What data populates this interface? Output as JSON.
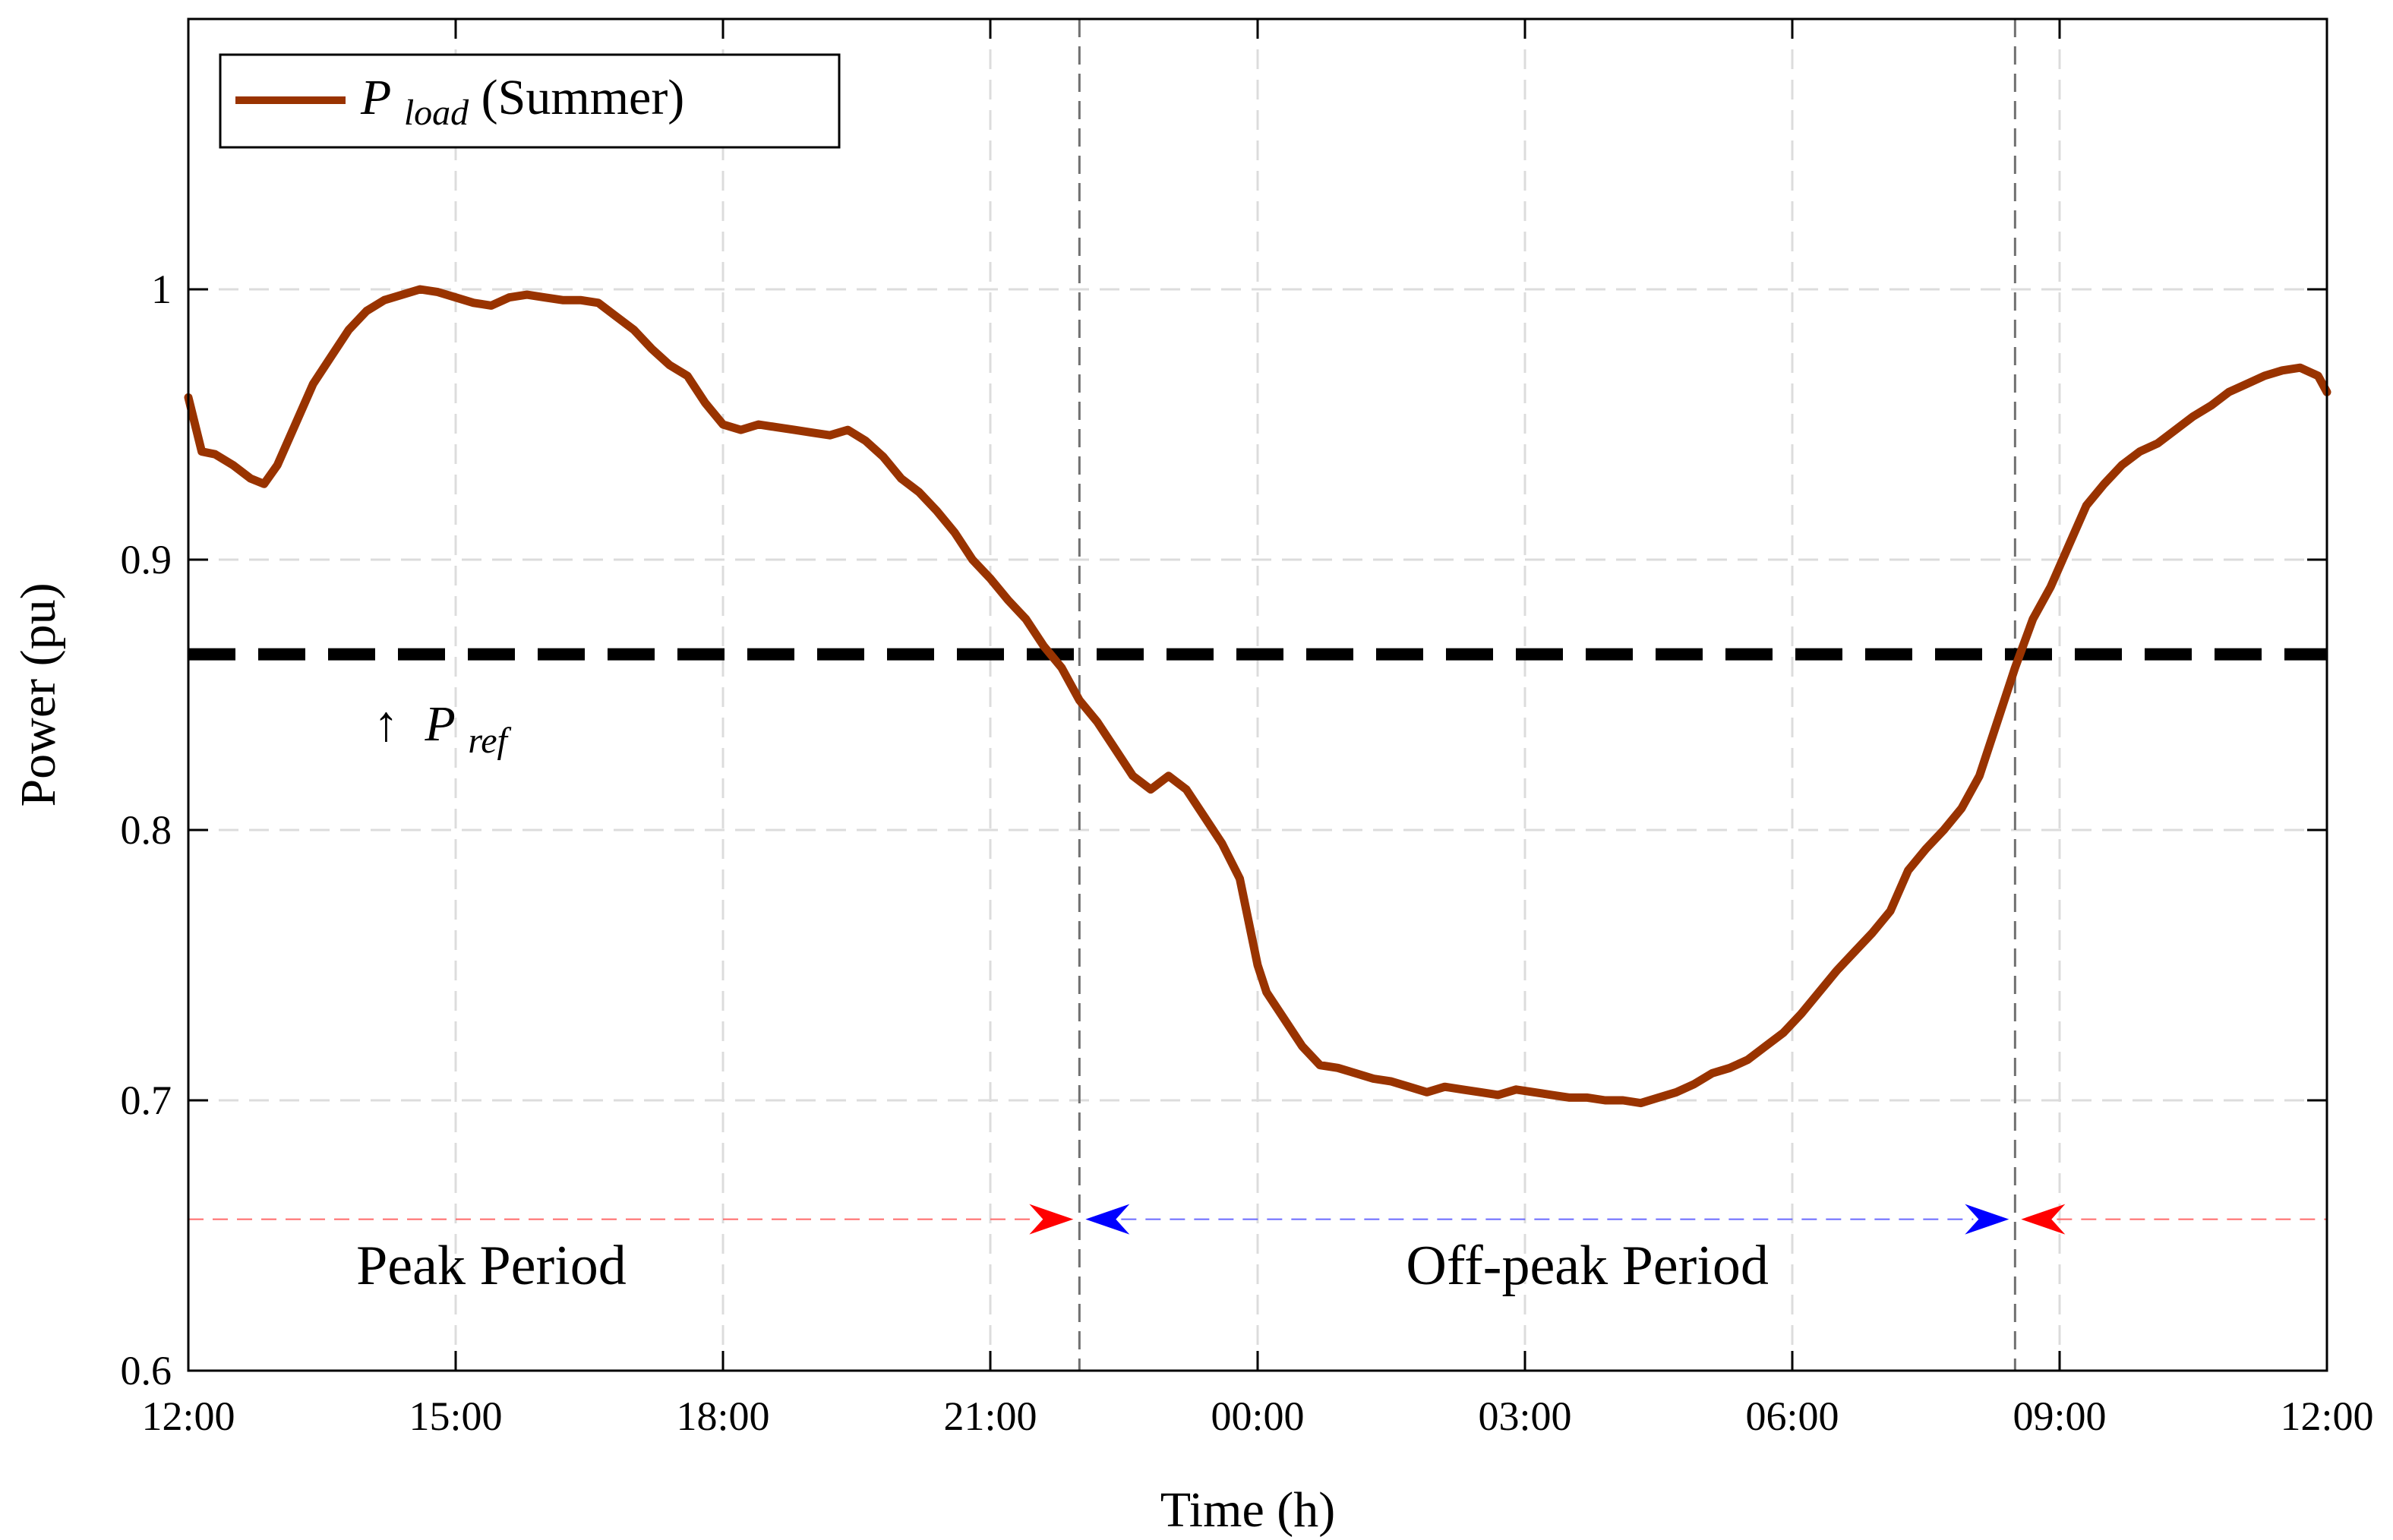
{
  "chart_data": {
    "type": "line",
    "title": "",
    "xlabel": "Time (h)",
    "ylabel": "Power (pu)",
    "x_unit": "hours since 12:00",
    "xlim": [
      0,
      24
    ],
    "ylim": [
      0.6,
      1.1
    ],
    "grid": true,
    "legend_placement": "top-left",
    "x_ticks": [
      {
        "value": 0,
        "label": "12:00"
      },
      {
        "value": 3,
        "label": "15:00"
      },
      {
        "value": 6,
        "label": "18:00"
      },
      {
        "value": 9,
        "label": "21:00"
      },
      {
        "value": 12,
        "label": "00:00"
      },
      {
        "value": 15,
        "label": "03:00"
      },
      {
        "value": 18,
        "label": "06:00"
      },
      {
        "value": 21,
        "label": "09:00"
      },
      {
        "value": 24,
        "label": "12:00"
      }
    ],
    "y_ticks": [
      {
        "value": 0.6,
        "label": "0.6"
      },
      {
        "value": 0.7,
        "label": "0.7"
      },
      {
        "value": 0.8,
        "label": "0.8"
      },
      {
        "value": 0.9,
        "label": "0.9"
      },
      {
        "value": 1.0,
        "label": "1"
      }
    ],
    "series": [
      {
        "name": "P_load (Summer)",
        "legend_main": "P",
        "legend_sub": "load",
        "legend_suffix": " (Summer)",
        "color": "#993300",
        "x": [
          0,
          0.15,
          0.3,
          0.5,
          0.7,
          0.85,
          1.0,
          1.2,
          1.4,
          1.6,
          1.8,
          2.0,
          2.2,
          2.4,
          2.6,
          2.8,
          3.0,
          3.2,
          3.4,
          3.6,
          3.8,
          4.0,
          4.2,
          4.4,
          4.6,
          4.8,
          5.0,
          5.2,
          5.4,
          5.6,
          5.8,
          6.0,
          6.2,
          6.4,
          6.6,
          6.8,
          7.0,
          7.2,
          7.4,
          7.6,
          7.8,
          8.0,
          8.2,
          8.4,
          8.6,
          8.8,
          9.0,
          9.2,
          9.4,
          9.6,
          9.8,
          10.0,
          10.2,
          10.4,
          10.6,
          10.8,
          11.0,
          11.2,
          11.4,
          11.6,
          11.8,
          12.0,
          12.1,
          12.3,
          12.5,
          12.7,
          12.9,
          13.1,
          13.3,
          13.5,
          13.7,
          13.9,
          14.1,
          14.3,
          14.5,
          14.7,
          14.9,
          15.1,
          15.3,
          15.5,
          15.7,
          15.9,
          16.1,
          16.3,
          16.5,
          16.7,
          16.9,
          17.1,
          17.3,
          17.5,
          17.7,
          17.9,
          18.1,
          18.3,
          18.5,
          18.7,
          18.9,
          19.1,
          19.3,
          19.5,
          19.7,
          19.9,
          20.1,
          20.3,
          20.5,
          20.7,
          20.9,
          21.1,
          21.3,
          21.5,
          21.7,
          21.9,
          22.1,
          22.3,
          22.5,
          22.7,
          22.9,
          23.1,
          23.3,
          23.5,
          23.7,
          23.9,
          24.0
        ],
        "y": [
          0.96,
          0.94,
          0.939,
          0.935,
          0.93,
          0.928,
          0.935,
          0.95,
          0.965,
          0.975,
          0.985,
          0.992,
          0.996,
          0.998,
          1.0,
          0.999,
          0.997,
          0.995,
          0.994,
          0.997,
          0.998,
          0.997,
          0.996,
          0.996,
          0.995,
          0.99,
          0.985,
          0.978,
          0.972,
          0.968,
          0.958,
          0.95,
          0.948,
          0.95,
          0.949,
          0.948,
          0.947,
          0.946,
          0.948,
          0.944,
          0.938,
          0.93,
          0.925,
          0.918,
          0.91,
          0.9,
          0.893,
          0.885,
          0.878,
          0.868,
          0.86,
          0.848,
          0.84,
          0.83,
          0.82,
          0.815,
          0.82,
          0.815,
          0.805,
          0.795,
          0.782,
          0.75,
          0.74,
          0.73,
          0.72,
          0.713,
          0.712,
          0.71,
          0.708,
          0.707,
          0.705,
          0.703,
          0.705,
          0.704,
          0.703,
          0.702,
          0.704,
          0.703,
          0.702,
          0.701,
          0.701,
          0.7,
          0.7,
          0.699,
          0.701,
          0.703,
          0.706,
          0.71,
          0.712,
          0.715,
          0.72,
          0.725,
          0.732,
          0.74,
          0.748,
          0.755,
          0.762,
          0.77,
          0.785,
          0.793,
          0.8,
          0.808,
          0.82,
          0.84,
          0.86,
          0.878,
          0.89,
          0.905,
          0.92,
          0.928,
          0.935,
          0.94,
          0.943,
          0.948,
          0.953,
          0.957,
          0.962,
          0.965,
          0.968,
          0.97,
          0.971,
          0.968,
          0.962
        ]
      }
    ],
    "reference_line": {
      "name": "P_ref",
      "y": 0.865,
      "label_arrow": "↑",
      "label_main": "P",
      "label_sub": "ref",
      "color": "#000000"
    },
    "period_markers": {
      "y": 0.656,
      "peak_end": 10.0,
      "offpeak_end": 20.5,
      "peak_color": "#ff0000",
      "offpeak_color": "#0000ff"
    },
    "annotations": [
      {
        "text": "Peak Period",
        "x": 3.4,
        "y": 0.632
      },
      {
        "text": "Off-peak Period",
        "x": 15.7,
        "y": 0.632
      }
    ]
  }
}
